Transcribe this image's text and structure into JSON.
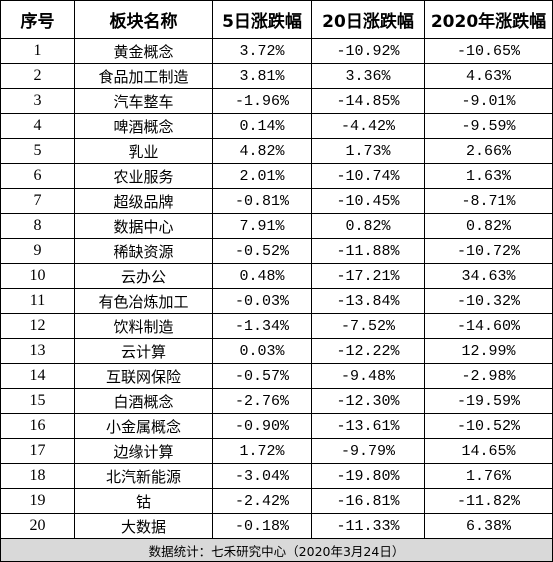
{
  "table": {
    "headers": [
      "序号",
      "板块名称",
      "5日涨跌幅",
      "20日涨跌幅",
      "2020年涨跌幅"
    ],
    "rows": [
      [
        "1",
        "黄金概念",
        "3.72%",
        "-10.92%",
        "-10.65%"
      ],
      [
        "2",
        "食品加工制造",
        "3.81%",
        "3.36%",
        "4.63%"
      ],
      [
        "3",
        "汽车整车",
        "-1.96%",
        "-14.85%",
        "-9.01%"
      ],
      [
        "4",
        "啤酒概念",
        "0.14%",
        "-4.42%",
        "-9.59%"
      ],
      [
        "5",
        "乳业",
        "4.82%",
        "1.73%",
        "2.66%"
      ],
      [
        "6",
        "农业服务",
        "2.01%",
        "-10.74%",
        "1.63%"
      ],
      [
        "7",
        "超级品牌",
        "-0.81%",
        "-10.45%",
        "-8.71%"
      ],
      [
        "8",
        "数据中心",
        "7.91%",
        "0.82%",
        "0.82%"
      ],
      [
        "9",
        "稀缺资源",
        "-0.52%",
        "-11.88%",
        "-10.72%"
      ],
      [
        "10",
        "云办公",
        "0.48%",
        "-17.21%",
        "34.63%"
      ],
      [
        "11",
        "有色冶炼加工",
        "-0.03%",
        "-13.84%",
        "-10.32%"
      ],
      [
        "12",
        "饮料制造",
        "-1.34%",
        "-7.52%",
        "-14.60%"
      ],
      [
        "13",
        "云计算",
        "0.03%",
        "-12.22%",
        "12.99%"
      ],
      [
        "14",
        "互联网保险",
        "-0.57%",
        "-9.48%",
        "-2.98%"
      ],
      [
        "15",
        "白酒概念",
        "-2.76%",
        "-12.30%",
        "-19.59%"
      ],
      [
        "16",
        "小金属概念",
        "-0.90%",
        "-13.61%",
        "-10.52%"
      ],
      [
        "17",
        "边缘计算",
        "1.72%",
        "-9.79%",
        "14.65%"
      ],
      [
        "18",
        "北汽新能源",
        "-3.04%",
        "-19.80%",
        "1.76%"
      ],
      [
        "19",
        "钴",
        "-2.42%",
        "-16.81%",
        "-11.82%"
      ],
      [
        "20",
        "大数据",
        "-0.18%",
        "-11.33%",
        "6.38%"
      ]
    ],
    "footer": "数据统计：七禾研究中心（2020年3月24日）"
  }
}
